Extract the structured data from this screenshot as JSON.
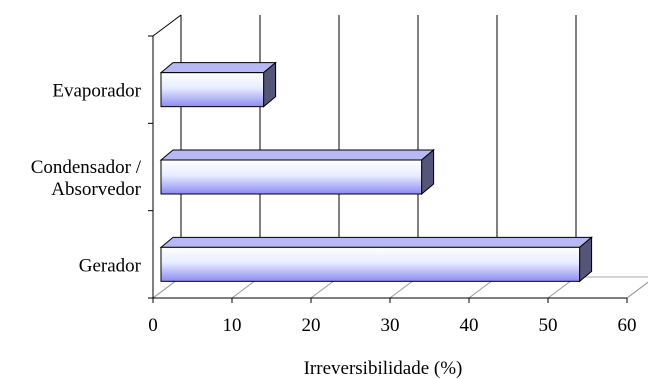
{
  "chart_data": {
    "type": "bar",
    "orientation": "horizontal",
    "style": "3d",
    "categories": [
      [
        "Evaporador"
      ],
      [
        "Condensador /",
        "Absorvedor"
      ],
      [
        "Gerador"
      ]
    ],
    "values": [
      14,
      34,
      54
    ],
    "xlabel": "Irreversibilidade (%)",
    "xlim": [
      0,
      60
    ],
    "xticks": [
      "0",
      "10",
      "20",
      "30",
      "40",
      "50",
      "60"
    ],
    "grid": true,
    "colors": {
      "bar_front_edge": "#ffffff",
      "bar_front_center": "#e8ecff",
      "bar_front_dark": "#8c8cf0",
      "bar_top": "#b8b8f4",
      "bar_side": "#55557a",
      "outline": "#000000"
    }
  }
}
